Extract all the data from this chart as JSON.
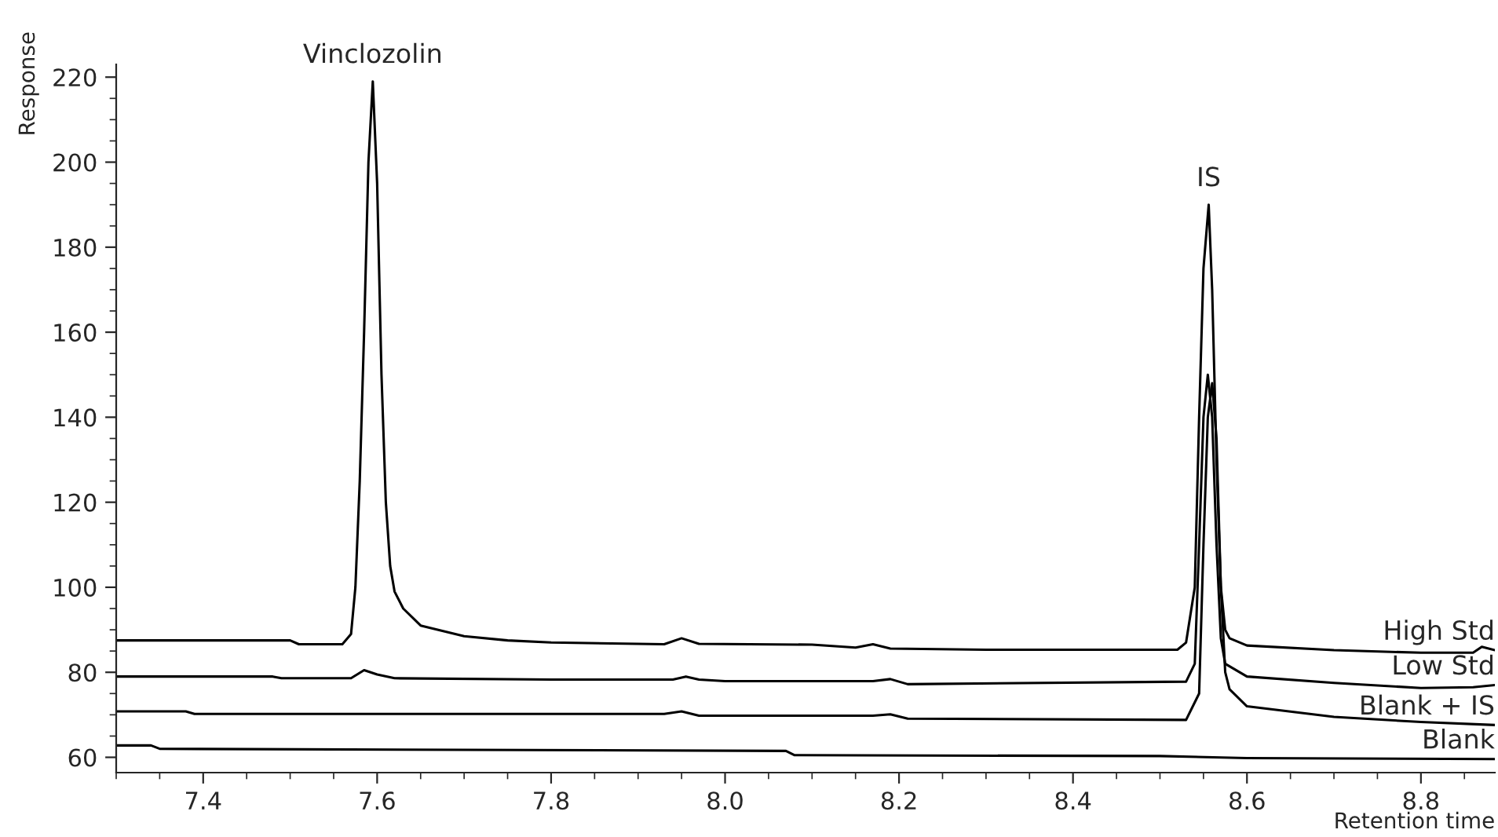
{
  "chart_data": {
    "type": "line",
    "xlabel": "Retention time",
    "ylabel": "Response",
    "xlim": [
      7.3,
      8.885
    ],
    "ylim": [
      56.4,
      223
    ],
    "xticks": [
      7.4,
      7.6,
      7.8,
      {
        "value": 8,
        "label": "8.0"
      },
      8.2,
      8.4,
      8.6,
      8.8
    ],
    "yticks": [
      60,
      80,
      100,
      120,
      140,
      160,
      180,
      200,
      220
    ],
    "grid": false,
    "legend": false,
    "marker": "none",
    "line_style": "solid",
    "annotations": [
      {
        "text": "Vinclozolin",
        "x": 7.595,
        "y": 219
      },
      {
        "text": "IS",
        "x": 8.556,
        "y": 190
      }
    ],
    "series": [
      {
        "name": "High Std",
        "color": "#000000",
        "x": [
          7.3,
          7.5,
          7.51,
          7.56,
          7.57,
          7.575,
          7.58,
          7.585,
          7.59,
          7.595,
          7.6,
          7.605,
          7.61,
          7.615,
          7.62,
          7.63,
          7.65,
          7.7,
          7.75,
          7.8,
          7.93,
          7.95,
          7.97,
          8.1,
          8.15,
          8.17,
          8.19,
          8.3,
          8.52,
          8.53,
          8.54,
          8.545,
          8.55,
          8.556,
          8.56,
          8.565,
          8.57,
          8.575,
          8.58,
          8.6,
          8.7,
          8.8,
          8.86,
          8.87,
          8.885
        ],
        "values": [
          87.5,
          87.5,
          86.6,
          86.6,
          89,
          100,
          125,
          160,
          200,
          219,
          195,
          150,
          120,
          105,
          99,
          95,
          91,
          88.5,
          87.5,
          87,
          86.6,
          88,
          86.7,
          86.5,
          85.8,
          86.6,
          85.6,
          85.3,
          85.3,
          87,
          100,
          140,
          175,
          190,
          170,
          130,
          100,
          90,
          88,
          86.3,
          85.2,
          84.6,
          84.6,
          86,
          85.2
        ]
      },
      {
        "name": "Low Std",
        "color": "#000000",
        "x": [
          7.3,
          7.48,
          7.49,
          7.57,
          7.585,
          7.6,
          7.62,
          7.8,
          7.94,
          7.955,
          7.97,
          8.0,
          8.17,
          8.19,
          8.21,
          8.53,
          8.54,
          8.545,
          8.55,
          8.555,
          8.56,
          8.565,
          8.57,
          8.575,
          8.6,
          8.7,
          8.8,
          8.86,
          8.885
        ],
        "values": [
          79,
          79,
          78.6,
          78.6,
          80.5,
          79.5,
          78.6,
          78.3,
          78.3,
          79,
          78.3,
          77.9,
          77.9,
          78.4,
          77.2,
          77.8,
          82,
          110,
          140,
          150,
          140,
          110,
          88,
          82,
          79,
          77.5,
          76.3,
          76.5,
          77
        ]
      },
      {
        "name": "Blank + IS",
        "color": "#000000",
        "x": [
          7.3,
          7.38,
          7.39,
          7.93,
          7.95,
          7.97,
          8.17,
          8.19,
          8.21,
          8.53,
          8.545,
          8.55,
          8.555,
          8.56,
          8.565,
          8.57,
          8.575,
          8.58,
          8.6,
          8.7,
          8.8,
          8.885
        ],
        "values": [
          70.8,
          70.8,
          70.2,
          70.2,
          70.8,
          69.8,
          69.8,
          70.1,
          69.1,
          68.8,
          75,
          110,
          140,
          148,
          135,
          100,
          80,
          76,
          72,
          69.5,
          68.3,
          67.6
        ]
      },
      {
        "name": "Blank",
        "color": "#000000",
        "x": [
          7.3,
          7.34,
          7.35,
          8.07,
          8.08,
          8.5,
          8.6,
          8.885
        ],
        "values": [
          62.8,
          62.8,
          62.0,
          61.5,
          60.5,
          60.3,
          59.8,
          59.6
        ]
      }
    ]
  }
}
